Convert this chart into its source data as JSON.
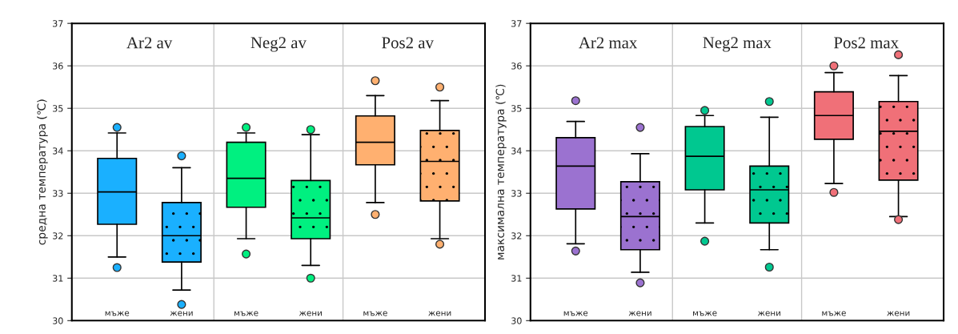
{
  "chart_data": [
    {
      "type": "box",
      "ylabel": "средна температура (℃)",
      "categories": [
        "мъже",
        "жени",
        "мъже",
        "жени",
        "мъже",
        "жени"
      ],
      "annotations": [
        "Ar2 av",
        "Neg2 av",
        "Pos2 av"
      ],
      "colors": [
        "#1ab0ff",
        "#1ab0ff",
        "#00f080",
        "#00f080",
        "#ffb070",
        "#ffb070"
      ],
      "boxes": [
        {
          "low": 31.5,
          "q1": 32.27,
          "median": 33.03,
          "q3": 33.82,
          "high": 34.42,
          "outliers": [
            34.55,
            31.25
          ]
        },
        {
          "low": 30.72,
          "q1": 31.38,
          "median": 32.0,
          "q3": 32.78,
          "high": 33.6,
          "outliers": [
            33.88,
            30.38
          ]
        },
        {
          "low": 31.93,
          "q1": 32.67,
          "median": 33.35,
          "q3": 34.2,
          "high": 34.42,
          "outliers": [
            34.55,
            31.57
          ]
        },
        {
          "low": 31.3,
          "q1": 31.93,
          "median": 32.42,
          "q3": 33.3,
          "high": 34.38,
          "outliers": [
            34.5,
            31.0
          ]
        },
        {
          "low": 32.78,
          "q1": 33.67,
          "median": 34.2,
          "q3": 34.82,
          "high": 35.3,
          "outliers": [
            35.65,
            32.5
          ]
        },
        {
          "low": 31.93,
          "q1": 32.82,
          "median": 33.75,
          "q3": 34.48,
          "high": 35.18,
          "outliers": [
            35.5,
            31.8
          ]
        }
      ],
      "ylim": [
        30,
        37
      ],
      "yticks": [
        30,
        31,
        32,
        33,
        34,
        35,
        36,
        37
      ],
      "grid": "y"
    },
    {
      "type": "box",
      "ylabel": "максимална температура (℃)",
      "categories": [
        "мъже",
        "жени",
        "мъже",
        "жени",
        "мъже",
        "жени"
      ],
      "annotations": [
        "Ar2 max",
        "Neg2 max",
        "Pos2 max"
      ],
      "colors": [
        "#9b72d0",
        "#9b72d0",
        "#00c890",
        "#00c890",
        "#f07078",
        "#f07078"
      ],
      "boxes": [
        {
          "low": 31.81,
          "q1": 32.63,
          "median": 33.64,
          "q3": 34.31,
          "high": 34.69,
          "outliers": [
            35.18,
            31.64
          ]
        },
        {
          "low": 31.14,
          "q1": 31.67,
          "median": 32.45,
          "q3": 33.27,
          "high": 33.93,
          "outliers": [
            34.55,
            30.89
          ]
        },
        {
          "low": 32.3,
          "q1": 33.08,
          "median": 33.87,
          "q3": 34.57,
          "high": 34.83,
          "outliers": [
            34.95,
            31.87
          ]
        },
        {
          "low": 31.67,
          "q1": 32.3,
          "median": 33.08,
          "q3": 33.64,
          "high": 34.79,
          "outliers": [
            35.16,
            31.26
          ]
        },
        {
          "low": 33.23,
          "q1": 34.27,
          "median": 34.83,
          "q3": 35.39,
          "high": 35.84,
          "outliers": [
            36.0,
            33.02
          ]
        },
        {
          "low": 32.45,
          "q1": 33.31,
          "median": 34.46,
          "q3": 35.16,
          "high": 35.77,
          "outliers": [
            36.26,
            32.38
          ]
        }
      ],
      "ylim": [
        30,
        37
      ],
      "yticks": [
        30,
        31,
        32,
        33,
        34,
        35,
        36,
        37
      ],
      "grid": "y"
    }
  ]
}
